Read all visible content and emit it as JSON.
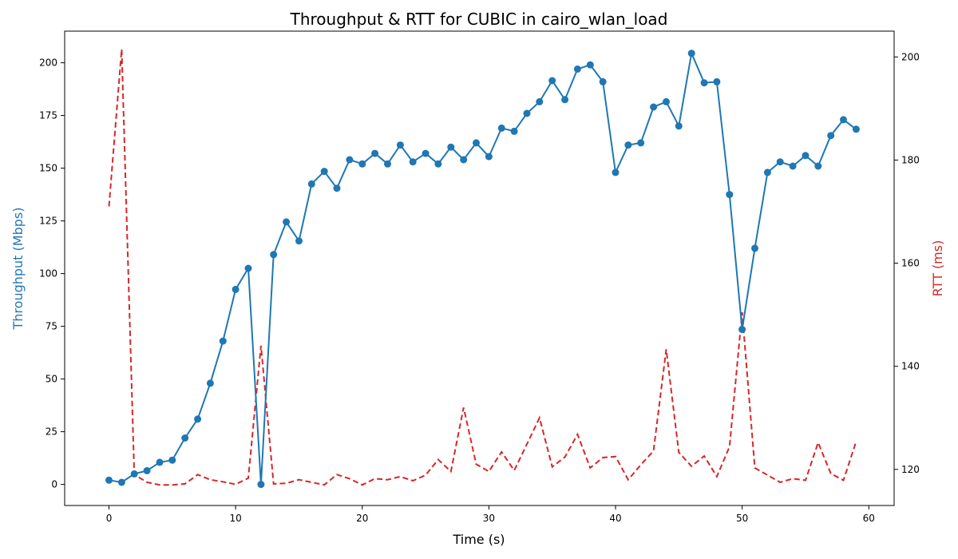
{
  "chart_data": {
    "type": "line",
    "title": "Throughput & RTT for CUBIC in cairo_wlan_load",
    "xlabel": "Time (s)",
    "ylabel_left": "Throughput (Mbps)",
    "ylabel_right": "RTT (ms)",
    "xlim": [
      -3.5,
      62
    ],
    "ylim_left": [
      -10,
      215
    ],
    "ylim_right": [
      113,
      205
    ],
    "x_ticks": [
      0,
      10,
      20,
      30,
      40,
      50,
      60
    ],
    "y_left_ticks": [
      0,
      25,
      50,
      75,
      100,
      125,
      150,
      175,
      200
    ],
    "y_right_ticks": [
      120,
      140,
      160,
      180,
      200
    ],
    "grid": false,
    "colors": {
      "throughput": "#1f77b4",
      "rtt": "#d62728"
    },
    "series": [
      {
        "axis": "left",
        "style": "solid-markers",
        "x": [
          0,
          1,
          2,
          3,
          4,
          5,
          6,
          7,
          8,
          9,
          10,
          11,
          12,
          13,
          14,
          15,
          16,
          17,
          18,
          19,
          20,
          21,
          22,
          23,
          24,
          25,
          26,
          27,
          28,
          29,
          30,
          31,
          32,
          33,
          34,
          35,
          36,
          37,
          38,
          39,
          40,
          41,
          42,
          43,
          44,
          45,
          46,
          47,
          48,
          49,
          50,
          51,
          52,
          53,
          54,
          55,
          56,
          57,
          58,
          59
        ],
        "values": [
          2,
          1,
          5,
          6.5,
          10.5,
          11.5,
          22,
          31,
          48,
          68,
          92.5,
          102.5,
          0,
          109,
          124.5,
          115.5,
          142.5,
          148.5,
          140.5,
          154,
          152,
          157,
          152,
          161,
          153,
          157,
          152,
          160,
          154,
          162,
          155.5,
          169,
          167.5,
          176,
          181.5,
          191.5,
          182.5,
          197,
          199,
          191,
          148,
          161,
          162,
          179,
          181.5,
          170,
          204.5,
          190.5,
          191,
          137.5,
          73.5,
          112,
          148,
          153,
          151,
          156,
          151,
          165.5,
          173,
          168.5
        ]
      },
      {
        "axis": "right",
        "style": "dashed",
        "x": [
          0,
          1,
          2,
          3,
          4,
          5,
          6,
          7,
          8,
          9,
          10,
          11,
          12,
          13,
          14,
          15,
          16,
          17,
          18,
          19,
          20,
          21,
          22,
          23,
          24,
          25,
          26,
          27,
          28,
          29,
          30,
          31,
          32,
          33,
          34,
          35,
          36,
          37,
          38,
          39,
          40,
          41,
          42,
          43,
          44,
          45,
          46,
          47,
          48,
          49,
          50,
          51,
          52,
          53,
          54,
          55,
          56,
          57,
          58,
          59
        ],
        "values": [
          171,
          201.5,
          119,
          117.5,
          117,
          117,
          117.2,
          119,
          118,
          117.6,
          117.1,
          118.3,
          144,
          117.2,
          117.3,
          118,
          117.5,
          117,
          119,
          118.2,
          117,
          118.2,
          118,
          118.6,
          117.8,
          118.9,
          121.9,
          119.6,
          132,
          121,
          119.6,
          123.4,
          119.8,
          124.9,
          130,
          120.5,
          122.4,
          126.8,
          120.3,
          122.3,
          122.5,
          118,
          120.9,
          123.6,
          143.3,
          123.3,
          120.6,
          122.6,
          118.6,
          124.4,
          150.5,
          120.3,
          118.9,
          117.5,
          118.2,
          117.9,
          125.2,
          119.2,
          117.9,
          125.4
        ]
      }
    ]
  }
}
